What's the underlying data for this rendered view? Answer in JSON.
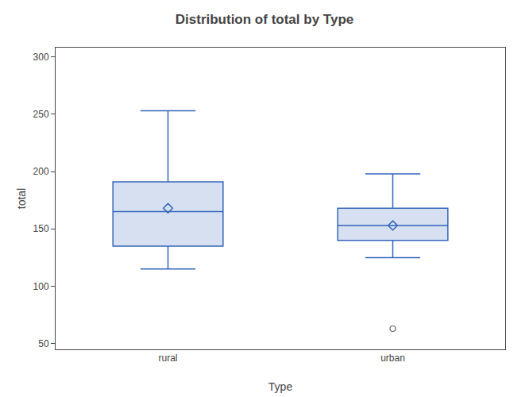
{
  "chart_data": {
    "type": "box",
    "title": "Distribution of total by Type",
    "xlabel": "Type",
    "ylabel": "total",
    "categories": [
      "rural",
      "urban"
    ],
    "boxes": [
      {
        "q1": 135,
        "median": 165,
        "q3": 191,
        "whislo": 115,
        "whishi": 253,
        "mean": 168,
        "fliers": []
      },
      {
        "q1": 140,
        "median": 153,
        "q3": 168,
        "whislo": 125,
        "whishi": 198,
        "mean": 153,
        "fliers": [
          63
        ]
      }
    ],
    "color": "#3366bb",
    "ylim": [
      45,
      308
    ],
    "yticks": [
      50,
      100,
      150,
      200,
      250,
      300
    ],
    "grid": false
  }
}
